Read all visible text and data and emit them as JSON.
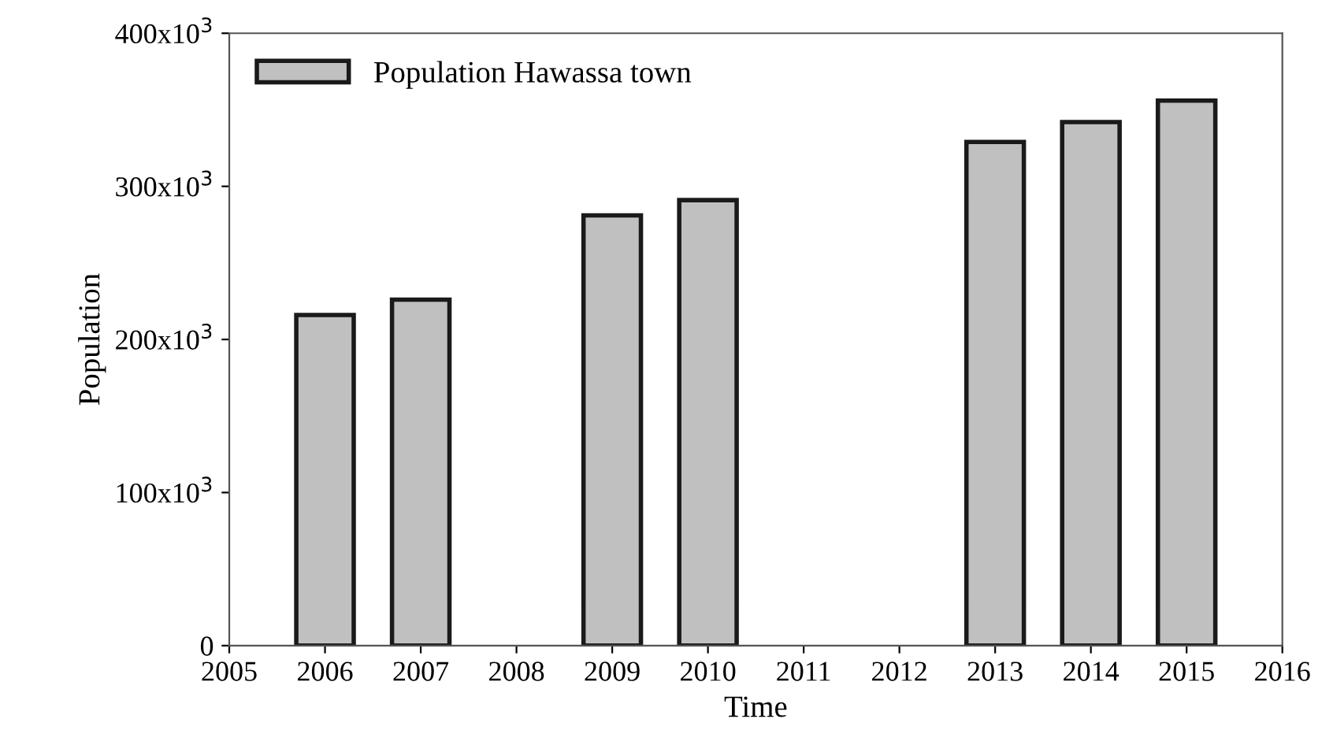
{
  "chart_data": {
    "type": "bar",
    "xlabel": "Time",
    "ylabel": "Population",
    "x": [
      2006,
      2007,
      2009,
      2010,
      2013,
      2014,
      2015
    ],
    "series": [
      {
        "name": "Population Hawassa town",
        "color": "#c0c0c0",
        "values": [
          216000,
          226000,
          281000,
          291000,
          329000,
          342000,
          356000
        ]
      }
    ],
    "xlim": [
      2005,
      2016
    ],
    "xticks": [
      2005,
      2006,
      2007,
      2008,
      2009,
      2010,
      2011,
      2012,
      2013,
      2014,
      2015,
      2016
    ],
    "ylim": [
      0,
      400000
    ],
    "yticks": [
      0,
      {
        "value": 100000,
        "label": "100x10$^{3}$"
      },
      {
        "value": 200000,
        "label": "200x10$^{3}$"
      },
      {
        "value": 300000,
        "label": "300x10$^{3}$"
      },
      {
        "value": 400000,
        "label": "400x10$^{3}$"
      }
    ],
    "grid": false,
    "legend": "top left"
  }
}
